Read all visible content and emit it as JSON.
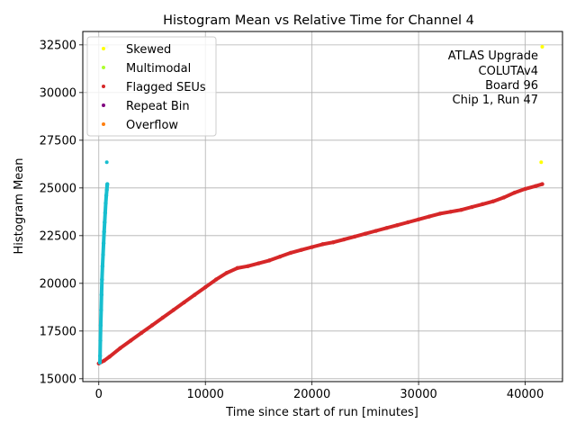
{
  "chart_data": {
    "type": "scatter",
    "title": "Histogram Mean vs Relative Time for Channel 4",
    "xlabel": "Time since start of run [minutes]",
    "ylabel": "Histogram Mean",
    "xlim": [
      -1500,
      43500
    ],
    "ylim": [
      14850,
      33200
    ],
    "xticks": [
      0,
      10000,
      20000,
      30000,
      40000
    ],
    "yticks": [
      15000,
      17500,
      20000,
      22500,
      25000,
      27500,
      30000,
      32500
    ],
    "grid": true,
    "legend_position": "top-left",
    "annotation": [
      "ATLAS Upgrade",
      "COLUTAv4",
      "Board 96",
      "Chip 1, Run 47"
    ],
    "legend": [
      {
        "name": "Skewed",
        "color": "#ffff00"
      },
      {
        "name": "Multimodal",
        "color": "#adff2f"
      },
      {
        "name": "Flagged SEUs",
        "color": "#d62728"
      },
      {
        "name": "Repeat Bin",
        "color": "#800080"
      },
      {
        "name": "Overflow",
        "color": "#ff7f0e"
      }
    ],
    "series": [
      {
        "name": "Flagged SEUs",
        "color": "#d62728",
        "marker": "dense",
        "x": [
          0,
          500,
          1000,
          2000,
          3000,
          4000,
          5000,
          6000,
          7000,
          8000,
          9000,
          10000,
          11000,
          12000,
          13000,
          14000,
          15000,
          16000,
          17000,
          18000,
          19000,
          20000,
          21000,
          22000,
          23000,
          24000,
          25000,
          26000,
          27000,
          28000,
          29000,
          30000,
          31000,
          32000,
          33000,
          34000,
          35000,
          36000,
          37000,
          38000,
          39000,
          40000,
          41000,
          41600
        ],
        "y": [
          15800,
          15950,
          16150,
          16600,
          17000,
          17400,
          17800,
          18200,
          18600,
          19000,
          19400,
          19800,
          20200,
          20550,
          20800,
          20900,
          21050,
          21200,
          21400,
          21600,
          21750,
          21900,
          22050,
          22150,
          22300,
          22450,
          22600,
          22750,
          22900,
          23050,
          23200,
          23350,
          23500,
          23650,
          23750,
          23850,
          24000,
          24150,
          24300,
          24500,
          24750,
          24950,
          25100,
          25200
        ]
      },
      {
        "name": "",
        "color": "#17becf",
        "marker": "dense",
        "x": [
          100,
          120,
          150,
          180,
          220,
          260,
          300,
          350,
          400,
          450,
          500,
          550,
          600,
          650,
          700,
          750,
          780,
          800
        ],
        "y": [
          15850,
          16200,
          17000,
          17800,
          18600,
          19400,
          20200,
          20900,
          21500,
          22100,
          22700,
          23200,
          23700,
          24200,
          24600,
          24900,
          25100,
          25200
        ]
      },
      {
        "name": "",
        "color": "#17becf",
        "marker": "point",
        "x": [
          750
        ],
        "y": [
          26350
        ]
      },
      {
        "name": "",
        "color": "#d0e0d8",
        "marker": "point",
        "x": [
          750
        ],
        "y": [
          32400
        ]
      },
      {
        "name": "Skewed",
        "color": "#ffff00",
        "marker": "point",
        "x": [
          41500,
          41600
        ],
        "y": [
          26350,
          32400
        ]
      }
    ]
  }
}
